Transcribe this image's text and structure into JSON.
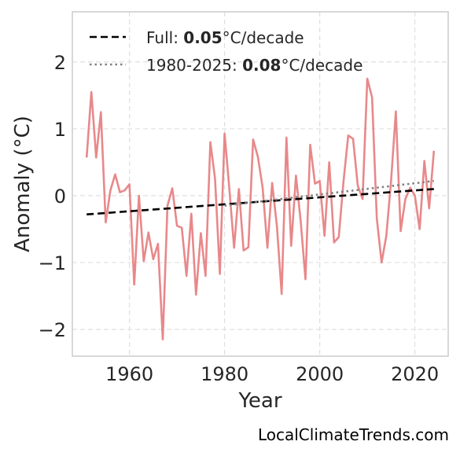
{
  "chart_data": {
    "type": "line",
    "title": "",
    "xlabel": "Year",
    "ylabel": "Anomaly (°C)",
    "xlim": [
      1948,
      2027
    ],
    "ylim": [
      -2.4,
      2.75
    ],
    "xticks": [
      1960,
      1980,
      2000,
      2020
    ],
    "xtick_labels": [
      "1960",
      "1980",
      "2000",
      "2020"
    ],
    "yticks": [
      -2,
      -1,
      0,
      1,
      2
    ],
    "ytick_labels": [
      "−2",
      "−1",
      "0",
      "1",
      "2"
    ],
    "grid": true,
    "legend_position": "top-left",
    "series": [
      {
        "kind": "anomaly",
        "color": "#e8888a",
        "x": [
          1951,
          1952,
          1953,
          1954,
          1955,
          1956,
          1957,
          1958,
          1959,
          1960,
          1961,
          1962,
          1963,
          1964,
          1965,
          1966,
          1967,
          1968,
          1969,
          1970,
          1971,
          1972,
          1973,
          1974,
          1975,
          1976,
          1977,
          1978,
          1979,
          1980,
          1981,
          1982,
          1983,
          1984,
          1985,
          1986,
          1987,
          1988,
          1989,
          1990,
          1991,
          1992,
          1993,
          1994,
          1995,
          1996,
          1997,
          1998,
          1999,
          2000,
          2001,
          2002,
          2003,
          2004,
          2005,
          2006,
          2007,
          2008,
          2009,
          2010,
          2011,
          2012,
          2013,
          2014,
          2015,
          2016,
          2017,
          2018,
          2019,
          2020,
          2021,
          2022,
          2023,
          2024
        ],
        "y": [
          0.57,
          1.55,
          0.57,
          1.25,
          -0.4,
          0.08,
          0.32,
          0.05,
          0.08,
          0.17,
          -1.33,
          0.0,
          -0.98,
          -0.55,
          -0.95,
          -0.72,
          -2.15,
          -0.15,
          0.11,
          -0.45,
          -0.48,
          -1.2,
          -0.27,
          -1.48,
          -0.56,
          -1.2,
          0.8,
          0.25,
          -1.17,
          0.93,
          0.1,
          -0.78,
          0.1,
          -0.82,
          -0.77,
          0.84,
          0.58,
          0.12,
          -0.78,
          0.19,
          -0.46,
          -1.47,
          0.87,
          -0.75,
          0.3,
          -0.38,
          -1.25,
          0.76,
          0.18,
          0.22,
          -0.6,
          0.5,
          -0.7,
          -0.62,
          0.22,
          0.9,
          0.85,
          0.15,
          -0.05,
          1.75,
          1.47,
          -0.34,
          -1.0,
          -0.6,
          0.23,
          1.26,
          -0.53,
          -0.05,
          0.12,
          0.0,
          -0.5,
          0.52,
          -0.19,
          0.67
        ]
      },
      {
        "kind": "trend",
        "name_prefix": "Full: ",
        "name_value": "0.05",
        "name_suffix": "°C/decade",
        "style": "dashed",
        "color": "#000000",
        "x": [
          1951,
          2024
        ],
        "y": [
          -0.28,
          0.1
        ]
      },
      {
        "kind": "trend",
        "name_prefix": "1980-2025: ",
        "name_value": "0.08",
        "name_suffix": "°C/decade",
        "style": "dotted",
        "color": "#808080",
        "x": [
          1980,
          2024
        ],
        "y": [
          -0.15,
          0.22
        ]
      }
    ]
  },
  "credit": "LocalClimateTrends.com"
}
